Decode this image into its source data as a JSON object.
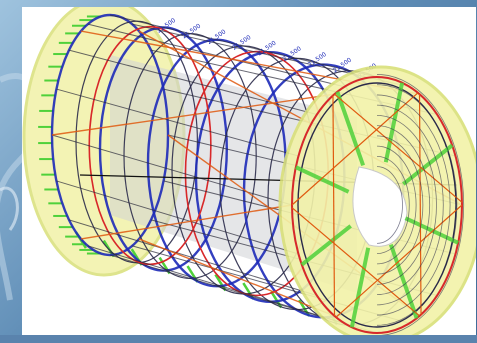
{
  "scene": {
    "description_free": true,
    "colors": {
      "background": "#6f97bf",
      "panel": "#ffffff",
      "flange_fill": "#f2f2a8",
      "flange_edge": "#d9e07a",
      "ring_primary": "#1d2ab8",
      "ring_secondary": "#2a2a4a",
      "longitudinal": "#2a2a3a",
      "diagonal": "#e05a10",
      "red_ring": "#d8282a",
      "load_arrows": "#4fd13a",
      "drum_gray": "#cfd2d6",
      "label_text": "#1d2ab8"
    },
    "icons": [
      "cylinder-model-icon"
    ],
    "labels": [
      "21.500",
      "21.500",
      "21.500",
      "21.500",
      "21.500",
      "21.500",
      "21.500",
      "21.500",
      "21.500"
    ]
  }
}
